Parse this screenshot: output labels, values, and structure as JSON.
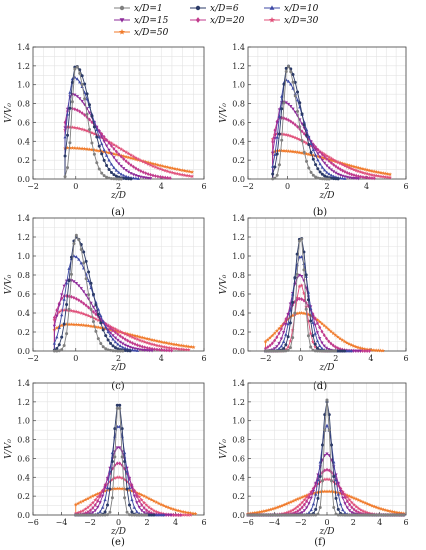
{
  "legend": [
    {
      "name": "x/D=1",
      "color": "#7f7f7f",
      "marker": "circle"
    },
    {
      "name": "x/D=6",
      "color": "#2b3a67",
      "marker": "circle"
    },
    {
      "name": "x/D=10",
      "color": "#3e4aa6",
      "marker": "triangle"
    },
    {
      "name": "x/D=15",
      "color": "#8e2b9a",
      "marker": "triangle-down"
    },
    {
      "name": "x/D=20",
      "color": "#c13a8c",
      "marker": "diamond"
    },
    {
      "name": "x/D=30",
      "color": "#e0507a",
      "marker": "star"
    },
    {
      "name": "x/D=50",
      "color": "#f07a2a",
      "marker": "star"
    }
  ],
  "chart_data": [
    {
      "type": "line",
      "label": "(a)",
      "xlabel": "z/D",
      "ylabel": "V/V₀",
      "xlim": [
        -2,
        6
      ],
      "ylim": [
        0,
        1.4
      ],
      "xticks": [
        "-2",
        "0",
        "2",
        "4",
        "6"
      ],
      "yticks": [
        "0.0",
        "0.2",
        "0.4",
        "0.6",
        "0.8",
        "1.0",
        "1.2",
        "1.4"
      ],
      "grid": true,
      "series": [
        {
          "name": "x/D=1",
          "color": "#7f7f7f",
          "z0": -0.5,
          "peak": 0.0,
          "amp": 1.2,
          "w": 0.18,
          "tail": 0.5,
          "zend": 2.2
        },
        {
          "name": "x/D=6",
          "color": "#2b3a67",
          "z0": -0.5,
          "peak": 0.0,
          "amp": 1.2,
          "w": 0.28,
          "tail": 0.7,
          "zend": 2.6
        },
        {
          "name": "x/D=10",
          "color": "#3e4aa6",
          "z0": -0.5,
          "peak": -0.1,
          "amp": 1.08,
          "w": 0.3,
          "tail": 0.9,
          "zend": 3.0
        },
        {
          "name": "x/D=15",
          "color": "#8e2b9a",
          "z0": -0.5,
          "peak": -0.2,
          "amp": 0.9,
          "w": 0.3,
          "tail": 1.2,
          "zend": 3.6
        },
        {
          "name": "x/D=20",
          "color": "#c13a8c",
          "z0": -0.5,
          "peak": -0.3,
          "amp": 0.75,
          "w": 0.3,
          "tail": 1.6,
          "zend": 4.5
        },
        {
          "name": "x/D=30",
          "color": "#e0507a",
          "z0": -0.5,
          "peak": -0.4,
          "amp": 0.55,
          "w": 0.3,
          "tail": 2.4,
          "zend": 5.5
        },
        {
          "name": "x/D=50",
          "color": "#f07a2a",
          "z0": -0.5,
          "peak": -0.45,
          "amp": 0.33,
          "w": 0.3,
          "tail": 3.4,
          "zend": 5.5
        }
      ]
    },
    {
      "type": "line",
      "label": "(b)",
      "xlabel": "z/D",
      "ylabel": "V/V₀",
      "xlim": [
        -2,
        6
      ],
      "ylim": [
        0,
        1.4
      ],
      "xticks": [
        "-2",
        "0",
        "2",
        "4",
        "6"
      ],
      "yticks": [
        "0.0",
        "0.2",
        "0.4",
        "0.6",
        "0.8",
        "1.0",
        "1.2",
        "1.4"
      ],
      "grid": true,
      "series": [
        {
          "name": "x/D=1",
          "color": "#7f7f7f",
          "z0": -0.75,
          "peak": 0.0,
          "amp": 1.2,
          "w": 0.2,
          "tail": 0.5,
          "zend": 2.2
        },
        {
          "name": "x/D=6",
          "color": "#2b3a67",
          "z0": -0.75,
          "peak": 0.0,
          "amp": 1.2,
          "w": 0.3,
          "tail": 0.7,
          "zend": 2.6
        },
        {
          "name": "x/D=10",
          "color": "#3e4aa6",
          "z0": -0.75,
          "peak": -0.1,
          "amp": 1.05,
          "w": 0.32,
          "tail": 0.9,
          "zend": 3.0
        },
        {
          "name": "x/D=15",
          "color": "#8e2b9a",
          "z0": -0.75,
          "peak": -0.25,
          "amp": 0.82,
          "w": 0.34,
          "tail": 1.2,
          "zend": 3.6
        },
        {
          "name": "x/D=20",
          "color": "#c13a8c",
          "z0": -0.75,
          "peak": -0.4,
          "amp": 0.65,
          "w": 0.35,
          "tail": 1.6,
          "zend": 4.5
        },
        {
          "name": "x/D=30",
          "color": "#e0507a",
          "z0": -0.75,
          "peak": -0.55,
          "amp": 0.48,
          "w": 0.4,
          "tail": 2.2,
          "zend": 5.3
        },
        {
          "name": "x/D=50",
          "color": "#f07a2a",
          "z0": -0.75,
          "peak": -0.5,
          "amp": 0.3,
          "w": 0.6,
          "tail": 3.0,
          "zend": 5.3
        }
      ]
    },
    {
      "type": "line",
      "label": "(c)",
      "xlabel": "z/D",
      "ylabel": "V/V₀",
      "xlim": [
        -2,
        6
      ],
      "ylim": [
        0,
        1.4
      ],
      "xticks": [
        "-2",
        "0",
        "2",
        "4",
        "6"
      ],
      "yticks": [
        "0.0",
        "0.2",
        "0.4",
        "0.6",
        "0.8",
        "1.0",
        "1.2",
        "1.4"
      ],
      "grid": true,
      "series": [
        {
          "name": "x/D=1",
          "color": "#7f7f7f",
          "z0": -1.0,
          "peak": 0.0,
          "amp": 1.22,
          "w": 0.22,
          "tail": 0.5,
          "zend": 2.3
        },
        {
          "name": "x/D=6",
          "color": "#2b3a67",
          "z0": -1.0,
          "peak": 0.0,
          "amp": 1.2,
          "w": 0.32,
          "tail": 0.7,
          "zend": 2.6
        },
        {
          "name": "x/D=10",
          "color": "#3e4aa6",
          "z0": -1.0,
          "peak": -0.1,
          "amp": 1.0,
          "w": 0.4,
          "tail": 0.9,
          "zend": 3.0
        },
        {
          "name": "x/D=15",
          "color": "#8e2b9a",
          "z0": -1.0,
          "peak": -0.35,
          "amp": 0.75,
          "w": 0.45,
          "tail": 1.2,
          "zend": 3.6
        },
        {
          "name": "x/D=20",
          "color": "#c13a8c",
          "z0": -1.0,
          "peak": -0.5,
          "amp": 0.58,
          "w": 0.5,
          "tail": 1.6,
          "zend": 4.5
        },
        {
          "name": "x/D=30",
          "color": "#e0507a",
          "z0": -1.0,
          "peak": -0.6,
          "amp": 0.43,
          "w": 0.55,
          "tail": 2.2,
          "zend": 5.3
        },
        {
          "name": "x/D=50",
          "color": "#f07a2a",
          "z0": -1.0,
          "peak": -0.4,
          "amp": 0.28,
          "w": 0.9,
          "tail": 3.0,
          "zend": 5.6
        }
      ]
    },
    {
      "type": "line",
      "label": "(d)",
      "xlabel": "z/D",
      "ylabel": "V/V₀",
      "xlim": [
        -3,
        6
      ],
      "ylim": [
        0,
        1.4
      ],
      "xticks": [
        "-2",
        "0",
        "2",
        "4",
        "6"
      ],
      "yticks": [
        "0.0",
        "0.2",
        "0.4",
        "0.6",
        "0.8",
        "1.0",
        "1.2",
        "1.4"
      ],
      "grid": true,
      "series": [
        {
          "name": "x/D=1",
          "color": "#7f7f7f",
          "z0": -2.0,
          "peak": 0.0,
          "amp": 1.22,
          "w": 0.22,
          "tail": 0.22,
          "zend": 2.0
        },
        {
          "name": "x/D=6",
          "color": "#2b3a67",
          "z0": -2.0,
          "peak": 0.0,
          "amp": 1.2,
          "w": 0.35,
          "tail": 0.35,
          "zend": 2.5
        },
        {
          "name": "x/D=10",
          "color": "#3e4aa6",
          "z0": -2.0,
          "peak": 0.0,
          "amp": 1.0,
          "w": 0.45,
          "tail": 0.45,
          "zend": 3.0
        },
        {
          "name": "x/D=15",
          "color": "#8e2b9a",
          "z0": -2.0,
          "peak": -0.05,
          "amp": 0.8,
          "w": 0.55,
          "tail": 0.6,
          "zend": 3.5
        },
        {
          "name": "x/D=20",
          "color": "#c13a8c",
          "z0": -2.0,
          "peak": -0.05,
          "amp": 0.55,
          "w": 0.8,
          "tail": 0.9,
          "zend": 4.0
        },
        {
          "name": "x/D=30",
          "color": "#e0507a",
          "z0": -2.0,
          "peak": 0.0,
          "amp": 0.7,
          "w": 0.3,
          "tail": 0.35,
          "zend": 1.6
        },
        {
          "name": "x/D=50",
          "color": "#f07a2a",
          "z0": -2.0,
          "peak": 0.0,
          "amp": 0.4,
          "w": 1.2,
          "tail": 1.5,
          "zend": 4.8
        }
      ]
    },
    {
      "type": "line",
      "label": "(e)",
      "xlabel": "z/D",
      "ylabel": "V/V₀",
      "xlim": [
        -6,
        6
      ],
      "ylim": [
        0,
        1.4
      ],
      "xticks": [
        "-6",
        "-4",
        "-2",
        "0",
        "2",
        "4",
        "6"
      ],
      "yticks": [
        "0.0",
        "0.2",
        "0.4",
        "0.6",
        "0.8",
        "1.0",
        "1.2",
        "1.4"
      ],
      "grid": true,
      "series": [
        {
          "name": "x/D=1",
          "color": "#7f7f7f",
          "z0": -3.0,
          "peak": 0.0,
          "amp": 1.22,
          "w": 0.22,
          "tail": 0.22,
          "zend": 2.0
        },
        {
          "name": "x/D=6",
          "color": "#2b3a67",
          "z0": -3.0,
          "peak": 0.0,
          "amp": 1.2,
          "w": 0.35,
          "tail": 0.35,
          "zend": 2.5
        },
        {
          "name": "x/D=10",
          "color": "#3e4aa6",
          "z0": -3.0,
          "peak": 0.0,
          "amp": 0.95,
          "w": 0.5,
          "tail": 0.5,
          "zend": 3.2
        },
        {
          "name": "x/D=15",
          "color": "#8e2b9a",
          "z0": -3.0,
          "peak": 0.0,
          "amp": 0.72,
          "w": 0.7,
          "tail": 0.7,
          "zend": 3.8
        },
        {
          "name": "x/D=20",
          "color": "#c13a8c",
          "z0": -3.0,
          "peak": 0.0,
          "amp": 0.55,
          "w": 0.9,
          "tail": 0.9,
          "zend": 4.5
        },
        {
          "name": "x/D=30",
          "color": "#e0507a",
          "z0": -3.0,
          "peak": 0.0,
          "amp": 0.4,
          "w": 1.2,
          "tail": 1.2,
          "zend": 5.2
        },
        {
          "name": "x/D=50",
          "color": "#f07a2a",
          "z0": -3.0,
          "peak": 0.0,
          "amp": 0.28,
          "w": 2.2,
          "tail": 2.2,
          "zend": 5.5
        }
      ]
    },
    {
      "type": "line",
      "label": "(f)",
      "xlabel": "z/D",
      "ylabel": "V/V₀",
      "xlim": [
        -6,
        6
      ],
      "ylim": [
        0,
        1.4
      ],
      "xticks": [
        "-6",
        "-4",
        "-2",
        "0",
        "2",
        "4",
        "6"
      ],
      "yticks": [
        "0.0",
        "0.2",
        "0.4",
        "0.6",
        "0.8",
        "1.0",
        "1.2",
        "1.4"
      ],
      "grid": true,
      "series": [
        {
          "name": "x/D=1",
          "color": "#7f7f7f",
          "z0": -6.0,
          "peak": 0.0,
          "amp": 1.22,
          "w": 0.22,
          "tail": 0.22,
          "zend": 6.0
        },
        {
          "name": "x/D=6",
          "color": "#2b3a67",
          "z0": -6.0,
          "peak": 0.0,
          "amp": 1.2,
          "w": 0.35,
          "tail": 0.35,
          "zend": 6.0
        },
        {
          "name": "x/D=10",
          "color": "#3e4aa6",
          "z0": -6.0,
          "peak": 0.0,
          "amp": 0.95,
          "w": 0.5,
          "tail": 0.5,
          "zend": 6.0
        },
        {
          "name": "x/D=15",
          "color": "#8e2b9a",
          "z0": -6.0,
          "peak": 0.0,
          "amp": 0.65,
          "w": 0.75,
          "tail": 0.75,
          "zend": 6.0
        },
        {
          "name": "x/D=20",
          "color": "#c13a8c",
          "z0": -6.0,
          "peak": 0.0,
          "amp": 0.48,
          "w": 1.0,
          "tail": 1.0,
          "zend": 6.0
        },
        {
          "name": "x/D=30",
          "color": "#e0507a",
          "z0": -6.0,
          "peak": 0.0,
          "amp": 0.38,
          "w": 1.3,
          "tail": 1.3,
          "zend": 6.0
        },
        {
          "name": "x/D=50",
          "color": "#f07a2a",
          "z0": -6.0,
          "peak": 0.0,
          "amp": 0.25,
          "w": 2.5,
          "tail": 2.5,
          "zend": 6.0
        }
      ]
    }
  ]
}
